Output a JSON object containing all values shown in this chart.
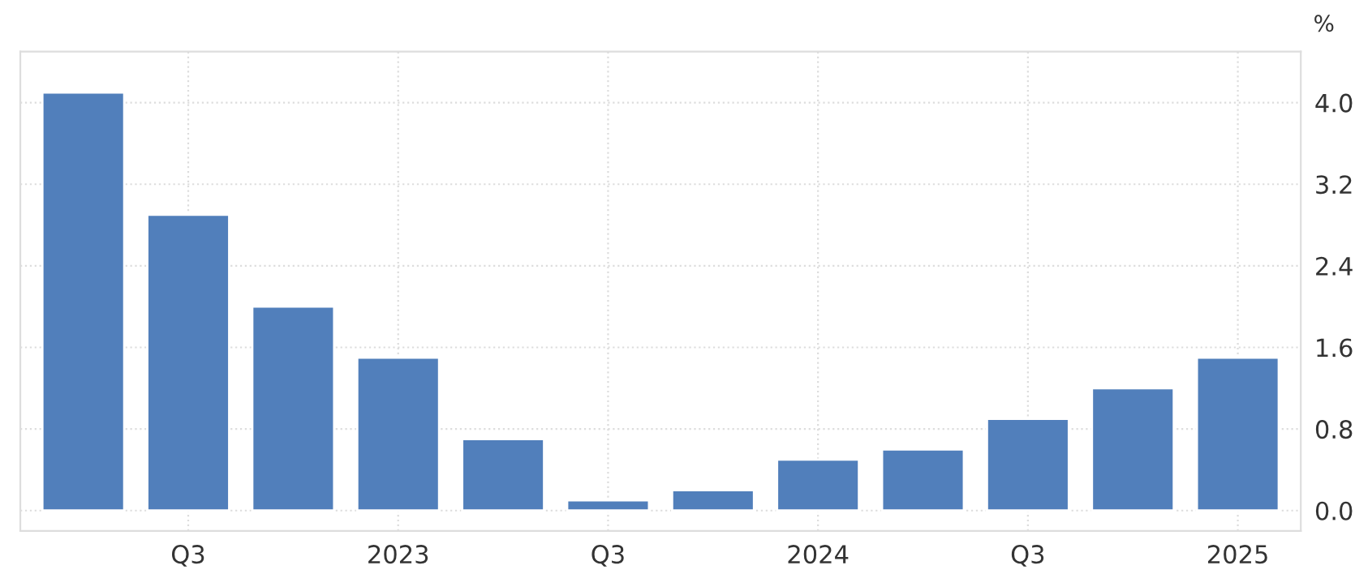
{
  "chart_data": {
    "type": "bar",
    "ylabel": "%",
    "categories": [
      null,
      "Q3",
      null,
      "2023",
      null,
      "Q3",
      null,
      "2024",
      null,
      "Q3",
      null,
      "2025"
    ],
    "values": [
      4.1,
      2.9,
      2.0,
      1.5,
      0.7,
      0.1,
      0.2,
      0.5,
      0.6,
      0.9,
      1.2,
      1.5
    ],
    "color": "#517fbb",
    "ylim": [
      -0.2,
      4.5
    ],
    "yticks": [
      {
        "value": 0,
        "label": "0.0"
      },
      0.8,
      1.6,
      2.4,
      3.2,
      {
        "value": 4,
        "label": "4.0"
      }
    ],
    "grid": true,
    "legend": false
  }
}
